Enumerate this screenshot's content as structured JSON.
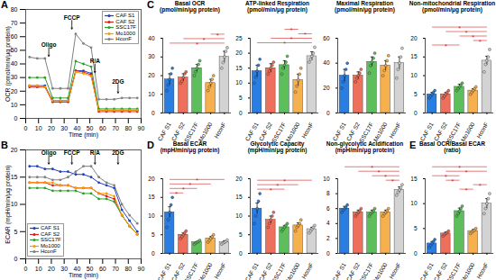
{
  "chart_data": [
    {
      "type": "line",
      "panel": "A",
      "xlabel": "Time (min)",
      "ylabel": "OCR (pmol/min/μg protein)",
      "x": [
        3,
        9,
        15,
        21,
        27,
        33,
        39,
        45,
        51,
        57,
        63,
        69,
        75,
        81,
        87
      ],
      "xlim": [
        0,
        90
      ],
      "xticks": [
        0,
        10,
        20,
        30,
        40,
        50,
        60,
        70,
        80,
        90
      ],
      "ylim": [
        0,
        80
      ],
      "yticks": [
        0,
        10,
        20,
        30,
        40,
        50,
        60,
        70,
        80
      ],
      "legend": "top-right",
      "marker": "circle",
      "annotations": [
        {
          "text": "Oligo",
          "x": 18,
          "y": 52
        },
        {
          "text": "FCCP",
          "x": 36,
          "y": 72
        },
        {
          "text": "R/A",
          "x": 54,
          "y": 40
        },
        {
          "text": "2DG",
          "x": 72,
          "y": 25
        }
      ],
      "series": [
        {
          "name": "CAF S1",
          "color": "#1f3fbf",
          "values": [
            24,
            24,
            24,
            13,
            13,
            13,
            35,
            35,
            33,
            6,
            6,
            6,
            6,
            6,
            6
          ]
        },
        {
          "name": "CAF S2",
          "color": "#d62020",
          "values": [
            23,
            23,
            23,
            12,
            12,
            12,
            35,
            34,
            32,
            5,
            5,
            5,
            5,
            5,
            5
          ]
        },
        {
          "name": "SSC17F",
          "color": "#2ca02c",
          "values": [
            30,
            30,
            30,
            15,
            15,
            15,
            42,
            40,
            38,
            7,
            7,
            7,
            7,
            7,
            7
          ]
        },
        {
          "name": "Mo1000",
          "color": "#ff9900",
          "values": [
            24,
            24,
            23,
            13,
            13,
            13,
            34,
            33,
            31,
            6,
            6,
            6,
            6,
            6,
            6
          ]
        },
        {
          "name": "HconF",
          "color": "#808080",
          "values": [
            45,
            44,
            44,
            22,
            22,
            22,
            62,
            55,
            52,
            14,
            14,
            14,
            15,
            15,
            15
          ]
        }
      ]
    },
    {
      "type": "line",
      "panel": "B",
      "xlabel": "Time (min)",
      "ylabel": "ECAR (mpH/min/μg protein)",
      "x": [
        3,
        9,
        15,
        21,
        27,
        33,
        39,
        45,
        51,
        57,
        63,
        69,
        75,
        81,
        87
      ],
      "xlim": [
        0,
        90
      ],
      "xticks": [
        0,
        10,
        20,
        30,
        40,
        50,
        60,
        70,
        80,
        90
      ],
      "ylim": [
        0,
        20
      ],
      "yticks": [
        0,
        5,
        10,
        15,
        20
      ],
      "legend": "bottom-left",
      "marker": "circle",
      "annotations": [
        {
          "text": "Oligo",
          "x": 18,
          "y": 19
        },
        {
          "text": "FCCP",
          "x": 36,
          "y": 19
        },
        {
          "text": "R/A",
          "x": 54,
          "y": 19
        },
        {
          "text": "2DG",
          "x": 72,
          "y": 19
        }
      ],
      "series": [
        {
          "name": "CAF S1",
          "color": "#1f3fbf",
          "values": [
            17,
            17,
            16.5,
            16.5,
            16,
            16,
            15.5,
            15.5,
            15,
            14,
            13.5,
            13,
            9,
            7,
            5
          ]
        },
        {
          "name": "CAF S2",
          "color": "#d62020",
          "values": [
            14,
            14,
            14,
            13.5,
            13.5,
            13.5,
            13,
            13,
            13,
            12,
            11.5,
            11,
            8,
            6,
            4.5
          ]
        },
        {
          "name": "SSC17F",
          "color": "#2ca02c",
          "values": [
            13,
            13,
            13,
            12.5,
            12.5,
            12.5,
            12.5,
            12,
            12,
            11,
            11,
            10.5,
            8,
            6,
            4.5
          ]
        },
        {
          "name": "Mo1000",
          "color": "#ff9900",
          "values": [
            14,
            14,
            14,
            14,
            13.5,
            13.5,
            13,
            13,
            13,
            12,
            12,
            11.5,
            8,
            6,
            4.5
          ]
        },
        {
          "name": "HconF",
          "color": "#808080",
          "values": [
            15,
            15,
            15,
            14.5,
            14.5,
            15,
            16,
            17,
            17,
            15,
            14,
            13.5,
            10,
            8,
            6.5
          ]
        }
      ]
    },
    {
      "type": "bar",
      "panel": "C",
      "title": "Basal OCR",
      "subtitle": "(pmol/min/μg protein)",
      "categories": [
        "CAF S1",
        "CAF S2",
        "SSC17F",
        "Mo1000",
        "HconF"
      ],
      "colors": [
        "#2a7de1",
        "#ee6f5b",
        "#5cbf5c",
        "#f6b04e",
        "#d3d3d3"
      ],
      "values": [
        18,
        19,
        24,
        16,
        30
      ],
      "errors": [
        3,
        2,
        2,
        2,
        3
      ],
      "points": [
        [
          12,
          15,
          18,
          21,
          24
        ],
        [
          16,
          17,
          19,
          21,
          22
        ],
        [
          20,
          22,
          24,
          26,
          28
        ],
        [
          12,
          14,
          16,
          18,
          20
        ],
        [
          24,
          27,
          30,
          33,
          35
        ]
      ],
      "ylim": [
        0,
        40
      ],
      "yticks": [
        0,
        10,
        20,
        30,
        40
      ],
      "significance": {
        "label": "*",
        "pairs": [
          [
            0,
            4
          ],
          [
            1,
            4
          ],
          [
            3,
            4
          ]
        ]
      }
    },
    {
      "type": "bar",
      "title": "ATP-linked Respiration",
      "subtitle": "(pmol/min/μg protein)",
      "categories": [
        "CAF S1",
        "CAF S2",
        "SSC17F",
        "Mo1000",
        "HconF"
      ],
      "colors": [
        "#2a7de1",
        "#ee6f5b",
        "#5cbf5c",
        "#f6b04e",
        "#d3d3d3"
      ],
      "values": [
        14,
        15,
        16,
        11,
        19
      ],
      "errors": [
        2,
        1.5,
        1.5,
        2,
        1.5
      ],
      "points": [
        [
          10,
          12,
          14,
          16,
          18
        ],
        [
          13,
          14,
          15,
          16,
          17
        ],
        [
          13,
          15,
          16,
          17,
          19
        ],
        [
          7,
          9,
          11,
          13,
          15
        ],
        [
          17,
          18,
          19,
          20,
          22
        ]
      ],
      "ylim": [
        0,
        25
      ],
      "yticks": [
        0,
        5,
        10,
        15,
        20,
        25
      ],
      "significance": {
        "label": "*",
        "pairs": [
          [
            0,
            4
          ],
          [
            1,
            4
          ],
          [
            3,
            4
          ],
          [
            2,
            3
          ]
        ]
      }
    },
    {
      "type": "bar",
      "title": "Maximal Respiration",
      "subtitle": "(pmol/min/μg protein)",
      "categories": [
        "CAF S1",
        "CAF S2",
        "SSC17F",
        "Mo1000",
        "HconF"
      ],
      "colors": [
        "#2a7de1",
        "#ee6f5b",
        "#5cbf5c",
        "#f6b04e",
        "#d3d3d3"
      ],
      "values": [
        30,
        30,
        41,
        38,
        40
      ],
      "errors": [
        5,
        3,
        4,
        4,
        5
      ],
      "points": [
        [
          20,
          25,
          30,
          35,
          40
        ],
        [
          25,
          28,
          30,
          32,
          35
        ],
        [
          32,
          38,
          41,
          44,
          48
        ],
        [
          30,
          34,
          38,
          42,
          46
        ],
        [
          28,
          35,
          40,
          45,
          52
        ]
      ],
      "ylim": [
        0,
        60
      ],
      "yticks": [
        0,
        20,
        40,
        60
      ],
      "significance": {
        "label": "*",
        "pairs": []
      }
    },
    {
      "type": "bar",
      "title": "Non-mitochondrial Respiration",
      "subtitle": "(pmol/min/μg protein)",
      "categories": [
        "CAF S1",
        "CAF S2",
        "SSC17F",
        "Mo1000",
        "HconF"
      ],
      "colors": [
        "#2a7de1",
        "#ee6f5b",
        "#5cbf5c",
        "#f6b04e",
        "#d3d3d3"
      ],
      "values": [
        5,
        5,
        7,
        6,
        14
      ],
      "errors": [
        0.5,
        0.5,
        0.7,
        0.5,
        1.2
      ],
      "points": [
        [
          4,
          4.5,
          5,
          5.5,
          6
        ],
        [
          4,
          4.5,
          5,
          5.5,
          6
        ],
        [
          6,
          6.5,
          7,
          7.5,
          8
        ],
        [
          5,
          5.5,
          6,
          6.5,
          7
        ],
        [
          11,
          13,
          14,
          15,
          17
        ]
      ],
      "ylim": [
        0,
        20
      ],
      "yticks": [
        0,
        5,
        10,
        15,
        20
      ],
      "significance": {
        "label": "*",
        "pairs": [
          [
            0,
            2
          ],
          [
            3,
            4
          ],
          [
            2,
            4
          ],
          [
            1,
            4
          ],
          [
            0,
            4
          ]
        ]
      }
    },
    {
      "type": "bar",
      "panel": "D",
      "title": "Basal ECAR",
      "subtitle": "(mpH/min/μg protein)",
      "categories": [
        "CAF S1",
        "CAF S2",
        "SSC17F",
        "Mo1000",
        "HconF"
      ],
      "colors": [
        "#2a7de1",
        "#ee6f5b",
        "#5cbf5c",
        "#f6b04e",
        "#d3d3d3"
      ],
      "values": [
        11,
        5,
        3,
        4,
        3
      ],
      "errors": [
        1.5,
        0.5,
        0.2,
        0.5,
        0.4
      ],
      "points": [
        [
          7,
          9,
          11,
          13,
          15
        ],
        [
          4,
          4.5,
          5,
          5.5,
          6
        ],
        [
          2.5,
          2.8,
          3,
          3.2,
          3.5
        ],
        [
          3,
          3.5,
          4,
          4.5,
          5
        ],
        [
          2.5,
          2.8,
          3,
          3.2,
          3.6
        ]
      ],
      "ylim": [
        0,
        20
      ],
      "yticks": [
        0,
        5,
        10,
        15,
        20
      ],
      "significance": {
        "label": "*",
        "pairs": [
          [
            0,
            1
          ],
          [
            0,
            2
          ],
          [
            0,
            3
          ],
          [
            0,
            4
          ]
        ]
      }
    },
    {
      "type": "bar",
      "title": "Glycolytic Capacity",
      "subtitle": "(mpH/min/μg protein)",
      "categories": [
        "CAF S1",
        "CAF S2",
        "SSC17F",
        "Mo1000",
        "HconF"
      ],
      "colors": [
        "#2a7de1",
        "#ee6f5b",
        "#5cbf5c",
        "#f6b04e",
        "#d3d3d3"
      ],
      "values": [
        12,
        9,
        7,
        7.5,
        6.5
      ],
      "errors": [
        1.5,
        1,
        0.5,
        0.7,
        0.5
      ],
      "points": [
        [
          8,
          10,
          12,
          14,
          16
        ],
        [
          7,
          8,
          9,
          10,
          11
        ],
        [
          6,
          6.5,
          7,
          7.5,
          8
        ],
        [
          6,
          7,
          7.5,
          8,
          9
        ],
        [
          5.5,
          6,
          6.5,
          7,
          7.5
        ]
      ],
      "ylim": [
        0,
        20
      ],
      "yticks": [
        0,
        5,
        10,
        15,
        20
      ],
      "significance": {
        "label": "*",
        "pairs": [
          [
            0,
            2
          ],
          [
            0,
            3
          ],
          [
            0,
            4
          ]
        ]
      }
    },
    {
      "type": "bar",
      "title": "Non-glycolytic Acidification",
      "subtitle": "(mpH/min/μg protein)",
      "categories": [
        "CAF S1",
        "CAF S2",
        "SSC17F",
        "Mo1000",
        "HconF"
      ],
      "colors": [
        "#2a7de1",
        "#ee6f5b",
        "#5cbf5c",
        "#f6b04e",
        "#d3d3d3"
      ],
      "values": [
        6,
        5.5,
        5.5,
        5.5,
        8.5
      ],
      "errors": [
        0.3,
        0.3,
        0.3,
        0.3,
        0.4
      ],
      "points": [
        [
          5.5,
          5.8,
          6,
          6.2,
          6.5
        ],
        [
          5,
          5.3,
          5.5,
          5.7,
          6
        ],
        [
          5,
          5.3,
          5.5,
          5.7,
          6
        ],
        [
          5,
          5.3,
          5.5,
          5.7,
          6
        ],
        [
          7.8,
          8.2,
          8.5,
          8.8,
          9.2
        ]
      ],
      "ylim": [
        0,
        10
      ],
      "yticks": [
        0,
        2,
        4,
        6,
        8,
        10
      ],
      "significance": {
        "label": "*",
        "pairs": [
          [
            3,
            4
          ],
          [
            2,
            4
          ],
          [
            1,
            4
          ],
          [
            0,
            4
          ]
        ]
      }
    },
    {
      "type": "bar",
      "panel": "E",
      "title": "Basal OCR/Basal ECAR",
      "subtitle": "(ratio)",
      "categories": [
        "CAF S1",
        "CAF S2",
        "SSC17F",
        "Mo1000",
        "HconF"
      ],
      "colors": [
        "#2a7de1",
        "#ee6f5b",
        "#5cbf5c",
        "#f6b04e",
        "#d3d3d3"
      ],
      "values": [
        2,
        4,
        8.5,
        4.5,
        10
      ],
      "errors": [
        0.4,
        0.3,
        0.6,
        0.3,
        1
      ],
      "points": [
        [
          1.2,
          1.6,
          2,
          2.4,
          2.8
        ],
        [
          3.5,
          3.8,
          4,
          4.2,
          4.5
        ],
        [
          7.5,
          8,
          8.5,
          9,
          9.5
        ],
        [
          4,
          4.3,
          4.5,
          4.7,
          5
        ],
        [
          8,
          9,
          10,
          11,
          12
        ]
      ],
      "ylim": [
        0,
        15
      ],
      "yticks": [
        0,
        5,
        10,
        15
      ],
      "significance": {
        "label": "*",
        "pairs": [
          [
            2,
            3
          ],
          [
            3,
            4
          ],
          [
            1,
            2
          ],
          [
            0,
            2
          ],
          [
            1,
            4
          ],
          [
            0,
            4
          ]
        ]
      }
    }
  ]
}
